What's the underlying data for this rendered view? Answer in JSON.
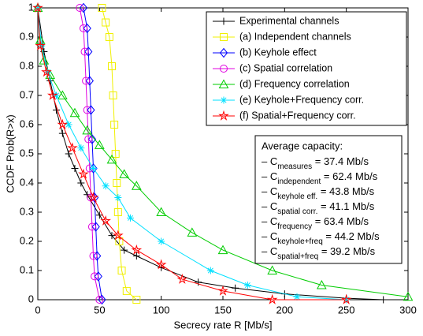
{
  "chart_data": {
    "type": "line",
    "xlabel": "Secrecy rate R [Mb/s]",
    "ylabel": "CCDF Prob(R>x)",
    "xlim": [
      0,
      300
    ],
    "ylim": [
      0,
      1
    ],
    "xticks": [
      0,
      50,
      100,
      150,
      200,
      250,
      300
    ],
    "yticks": [
      0,
      0.1,
      0.2,
      0.3,
      0.4,
      0.5,
      0.6,
      0.7,
      0.8,
      0.9,
      1
    ],
    "grid": false,
    "legend_position": "upper right",
    "series": [
      {
        "name": "Experimental channels",
        "color": "#000000",
        "marker": "plus",
        "x": [
          0,
          5,
          10,
          15,
          20,
          25,
          30,
          35,
          40,
          50,
          60,
          70,
          80,
          100,
          130,
          160,
          200,
          250,
          280
        ],
        "values": [
          1,
          0.85,
          0.75,
          0.65,
          0.57,
          0.5,
          0.45,
          0.4,
          0.36,
          0.29,
          0.22,
          0.17,
          0.15,
          0.11,
          0.06,
          0.04,
          0.02,
          0.005,
          0
        ]
      },
      {
        "name": "(a) Independent channels",
        "color": "#f0f000",
        "marker": "square",
        "x": [
          52,
          55,
          58,
          60,
          61,
          62,
          63,
          64,
          65,
          66,
          68,
          72,
          80
        ],
        "values": [
          1,
          0.95,
          0.9,
          0.8,
          0.7,
          0.6,
          0.5,
          0.4,
          0.3,
          0.2,
          0.1,
          0.03,
          0
        ]
      },
      {
        "name": "(b) Keyhole effect",
        "color": "#0000ff",
        "marker": "diamond",
        "x": [
          37,
          40,
          41,
          42,
          43,
          44,
          45,
          46,
          47,
          48,
          49,
          52
        ],
        "values": [
          1,
          0.93,
          0.85,
          0.75,
          0.65,
          0.55,
          0.45,
          0.35,
          0.25,
          0.15,
          0.08,
          0
        ]
      },
      {
        "name": "(c) Spatial correlation",
        "color": "#e000e0",
        "marker": "circle",
        "x": [
          34,
          37,
          38,
          39,
          40,
          41,
          42,
          43,
          44,
          45,
          46,
          50
        ],
        "values": [
          1,
          0.93,
          0.85,
          0.75,
          0.65,
          0.55,
          0.45,
          0.35,
          0.25,
          0.15,
          0.08,
          0
        ]
      },
      {
        "name": "(d) Frequency correlation",
        "color": "#00cc00",
        "marker": "triangle",
        "x": [
          0,
          2,
          5,
          10,
          20,
          30,
          40,
          50,
          60,
          70,
          80,
          100,
          125,
          150,
          190,
          230,
          300
        ],
        "values": [
          1,
          0.89,
          0.82,
          0.77,
          0.7,
          0.64,
          0.58,
          0.53,
          0.48,
          0.43,
          0.39,
          0.3,
          0.23,
          0.17,
          0.1,
          0.05,
          0.01
        ]
      },
      {
        "name": "(e) Keyhole+Frequency corr.",
        "color": "#00e0ff",
        "marker": "asterisk",
        "x": [
          0,
          3,
          8,
          15,
          25,
          35,
          45,
          55,
          65,
          75,
          100,
          140,
          170,
          210,
          250
        ],
        "values": [
          1,
          0.87,
          0.78,
          0.7,
          0.6,
          0.52,
          0.45,
          0.39,
          0.35,
          0.28,
          0.2,
          0.1,
          0.05,
          0.01,
          0
        ]
      },
      {
        "name": "(f) Spatial+Frequency corr.",
        "color": "#ff0000",
        "marker": "pentagram",
        "x": [
          0,
          2,
          7,
          12,
          20,
          28,
          37,
          45,
          55,
          65,
          80,
          100,
          117,
          150,
          190,
          250
        ],
        "values": [
          1,
          0.87,
          0.78,
          0.7,
          0.6,
          0.52,
          0.43,
          0.35,
          0.27,
          0.22,
          0.17,
          0.12,
          0.07,
          0.03,
          0,
          0
        ]
      }
    ],
    "annotation": {
      "title": "Average capacity:",
      "items": [
        {
          "prefix": "– C",
          "sub": "measures",
          "rest": " = 37.4 Mb/s"
        },
        {
          "prefix": "– C",
          "sub": "independent",
          "rest": " = 62.4 Mb/s"
        },
        {
          "prefix": "– C",
          "sub": "keyhole eff.",
          "rest": " = 43.8 Mb/s"
        },
        {
          "prefix": "– C",
          "sub": "spatial corr.",
          "rest": " = 41.1 Mb/s"
        },
        {
          "prefix": "– C",
          "sub": "frequency",
          "rest": " = 63.4 Mb/s"
        },
        {
          "prefix": "– C",
          "sub": "keyhole+freq",
          "rest": " = 44.2 Mb/s"
        },
        {
          "prefix": "– C",
          "sub": "spatial+freq",
          "rest": " = 39.2 Mb/s"
        }
      ]
    }
  }
}
